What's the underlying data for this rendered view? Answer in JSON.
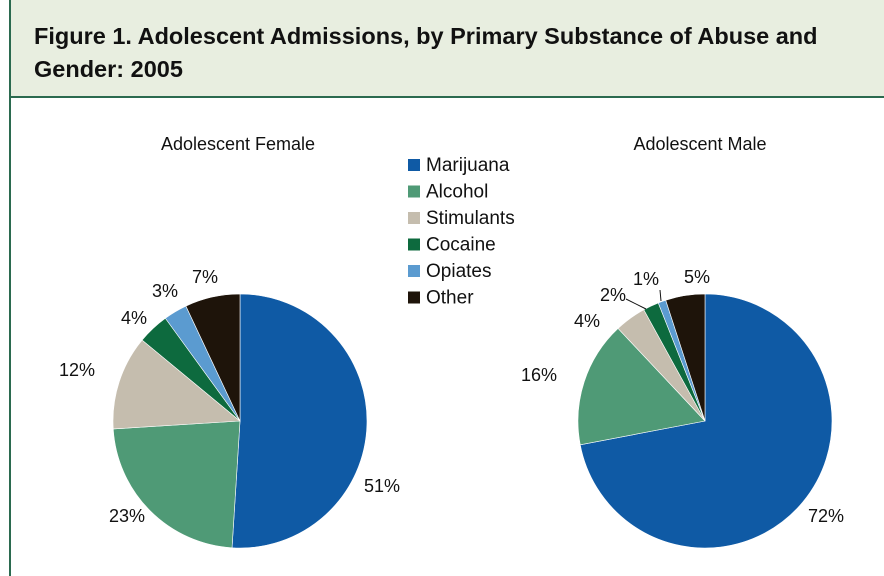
{
  "figure": {
    "title": "Figure 1. Adolescent Admissions, by Primary Substance of Abuse and Gender: 2005"
  },
  "colors": {
    "header_bg": "#e8eee0",
    "header_rule": "#2b6a4f"
  },
  "chart_data": [
    {
      "type": "pie",
      "title": "Adolescent Female",
      "categories": [
        "Marijuana",
        "Alcohol",
        "Stimulants",
        "Cocaine",
        "Opiates",
        "Other"
      ],
      "values": [
        51,
        23,
        12,
        4,
        3,
        7
      ],
      "labels": [
        "51%",
        "23%",
        "12%",
        "4%",
        "3%",
        "7%"
      ],
      "colors": [
        "#0f5aa5",
        "#4f9a76",
        "#c5bdae",
        "#0d6a3e",
        "#5b9bd0",
        "#1e140a"
      ]
    },
    {
      "type": "pie",
      "title": "Adolescent Male",
      "categories": [
        "Marijuana",
        "Alcohol",
        "Stimulants",
        "Cocaine",
        "Opiates",
        "Other"
      ],
      "values": [
        72,
        16,
        4,
        2,
        1,
        5
      ],
      "labels": [
        "72%",
        "16%",
        "4%",
        "2%",
        "1%",
        "5%"
      ],
      "colors": [
        "#0f5aa5",
        "#4f9a76",
        "#c5bdae",
        "#0d6a3e",
        "#5b9bd0",
        "#1e140a"
      ]
    }
  ],
  "legend": {
    "placement": "center",
    "items": [
      {
        "label": "Marijuana",
        "color": "#0f5aa5"
      },
      {
        "label": "Alcohol",
        "color": "#4f9a76"
      },
      {
        "label": "Stimulants",
        "color": "#c5bdae"
      },
      {
        "label": "Cocaine",
        "color": "#0d6a3e"
      },
      {
        "label": "Opiates",
        "color": "#5b9bd0"
      },
      {
        "label": "Other",
        "color": "#1e140a"
      }
    ]
  }
}
